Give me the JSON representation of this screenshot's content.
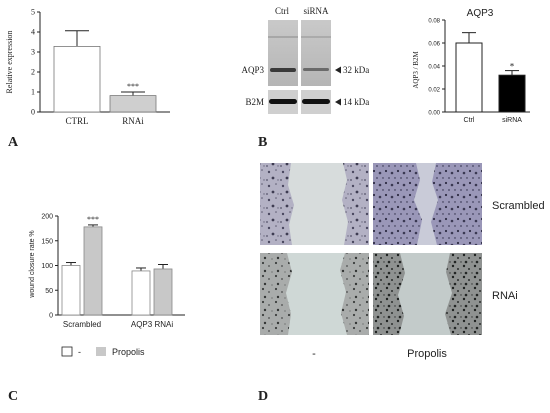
{
  "panels": {
    "A": {
      "letter": "A",
      "chart_data": {
        "type": "bar",
        "categories": [
          "CTRL",
          "RNAi"
        ],
        "values": [
          3.28,
          0.82
        ],
        "errors": [
          0.78,
          0.18
        ],
        "significance": [
          "",
          "***"
        ],
        "ylabel": "Relative expression",
        "ylim": [
          0,
          5
        ],
        "yticks": [
          0,
          1,
          2,
          3,
          4,
          5
        ],
        "colors": [
          "#ffffff",
          "#cfcfcf"
        ],
        "grid": false
      }
    },
    "B": {
      "letter": "B",
      "blot": {
        "lanes": [
          "Ctrl",
          "siRNA"
        ],
        "rows": [
          {
            "label": "AQP3",
            "marker": "32 kDa"
          },
          {
            "label": "B2M",
            "marker": "14 kDa"
          }
        ]
      },
      "chart_data": {
        "type": "bar",
        "title": "AQP3",
        "categories": [
          "Ctrl",
          "siRNA"
        ],
        "values": [
          0.06,
          0.032
        ],
        "errors": [
          0.009,
          0.004
        ],
        "significance": [
          "",
          "*"
        ],
        "ylabel": "AQP3 / B2M",
        "ylim": [
          0,
          0.08
        ],
        "yticks": [
          "0.00",
          "0.02",
          "0.04",
          "0.06",
          "0.08"
        ],
        "colors": [
          "#ffffff",
          "#000000"
        ],
        "grid": false
      }
    },
    "C": {
      "letter": "C",
      "chart_data": {
        "type": "bar",
        "categories": [
          "Scrambled",
          "AQP3 RNAi"
        ],
        "series": [
          {
            "name": "-",
            "values": [
              100,
              89
            ],
            "errors": [
              6,
              6
            ],
            "color": "#ffffff"
          },
          {
            "name": "Propolis",
            "values": [
              178,
              93
            ],
            "errors": [
              4,
              9
            ],
            "color": "#c8c8c8"
          }
        ],
        "significance": [
          [
            "",
            "***"
          ],
          [
            "",
            ""
          ]
        ],
        "ylabel": "wound closure rate %",
        "ylim": [
          0,
          200
        ],
        "yticks": [
          0,
          50,
          100,
          150,
          200
        ],
        "legend_position": "bottom",
        "grid": false
      }
    },
    "D": {
      "letter": "D",
      "rows": [
        "Scrambled",
        "RNAi"
      ],
      "columns": [
        "-",
        "Propolis"
      ]
    }
  }
}
